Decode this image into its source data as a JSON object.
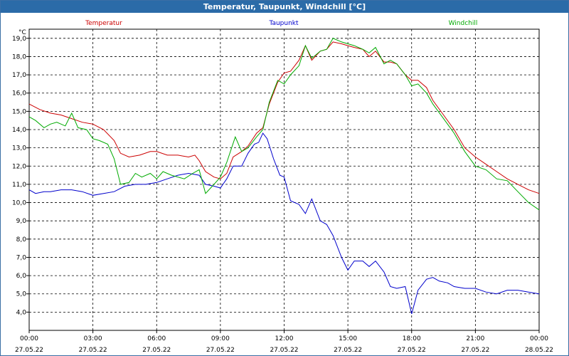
{
  "chart_data": {
    "type": "line",
    "title": "Temperatur, Taupunkt, Windchill [°C]",
    "unit_label": "°C",
    "ylim": [
      3.0,
      19.5
    ],
    "y_ticks": [
      "4,0",
      "5,0",
      "6,0",
      "7,0",
      "8,0",
      "9,0",
      "10,0",
      "11,0",
      "12,0",
      "13,0",
      "14,0",
      "15,0",
      "16,0",
      "17,0",
      "18,0",
      "19,0"
    ],
    "y_tick_values": [
      4,
      5,
      6,
      7,
      8,
      9,
      10,
      11,
      12,
      13,
      14,
      15,
      16,
      17,
      18,
      19
    ],
    "xlim": [
      0,
      24
    ],
    "x_tick_hours": [
      0,
      3,
      6,
      9,
      12,
      15,
      18,
      21,
      24
    ],
    "x_tick_times": [
      "00:00",
      "03:00",
      "06:00",
      "09:00",
      "12:00",
      "15:00",
      "18:00",
      "21:00",
      "00:00"
    ],
    "x_tick_dates": [
      "27.05.22",
      "27.05.22",
      "27.05.22",
      "27.05.22",
      "27.05.22",
      "27.05.22",
      "27.05.22",
      "27.05.22",
      "28.05.22"
    ],
    "grid": true,
    "series": [
      {
        "name": "Temperatur",
        "color": "#cc0000",
        "x": [
          0,
          0.5,
          1,
          1.5,
          2,
          2.5,
          3,
          3.5,
          4,
          4.3,
          4.7,
          5.2,
          5.7,
          6,
          6.5,
          7,
          7.5,
          7.8,
          8,
          8.3,
          8.7,
          9,
          9.3,
          9.6,
          10,
          10.3,
          10.7,
          11,
          11.3,
          11.7,
          12,
          12.3,
          12.7,
          13,
          13.3,
          13.7,
          14,
          14.3,
          14.7,
          15,
          15.3,
          15.7,
          16,
          16.3,
          16.7,
          17,
          17.3,
          17.7,
          18,
          18.3,
          18.7,
          19,
          19.5,
          20,
          20.5,
          21,
          21.5,
          22,
          22.5,
          23,
          23.5,
          24
        ],
        "values": [
          15.4,
          15.1,
          14.9,
          14.8,
          14.6,
          14.4,
          14.3,
          14.0,
          13.4,
          12.7,
          12.5,
          12.6,
          12.8,
          12.8,
          12.6,
          12.6,
          12.5,
          12.6,
          12.3,
          11.7,
          11.4,
          11.3,
          11.6,
          12.5,
          12.8,
          13.1,
          13.8,
          14.1,
          15.4,
          16.6,
          17.1,
          17.2,
          17.8,
          18.6,
          17.8,
          18.3,
          18.4,
          18.8,
          18.7,
          18.6,
          18.5,
          18.4,
          18.0,
          18.3,
          17.7,
          17.7,
          17.6,
          17.0,
          16.7,
          16.7,
          16.3,
          15.6,
          14.8,
          14.0,
          13.0,
          12.5,
          12.1,
          11.7,
          11.3,
          11.0,
          10.7,
          10.5
        ]
      },
      {
        "name": "Taupunkt",
        "color": "#0000cc",
        "x": [
          0,
          0.3,
          0.7,
          1,
          1.5,
          2,
          2.5,
          3,
          3.5,
          4,
          4.5,
          5,
          5.5,
          6,
          6.5,
          7,
          7.5,
          8,
          8.3,
          8.7,
          9,
          9.3,
          9.6,
          10,
          10.3,
          10.6,
          10.8,
          11,
          11.2,
          11.5,
          11.8,
          12,
          12.3,
          12.7,
          13,
          13.3,
          13.7,
          14,
          14.3,
          14.7,
          15,
          15.3,
          15.7,
          16,
          16.3,
          16.7,
          17,
          17.3,
          17.7,
          18,
          18.3,
          18.7,
          19,
          19.3,
          19.7,
          20,
          20.5,
          21,
          21.5,
          22,
          22.5,
          23,
          23.5,
          24
        ],
        "values": [
          10.7,
          10.5,
          10.6,
          10.6,
          10.7,
          10.7,
          10.6,
          10.4,
          10.5,
          10.6,
          10.9,
          11.0,
          11.0,
          11.1,
          11.3,
          11.5,
          11.6,
          11.5,
          11.0,
          10.9,
          10.8,
          11.3,
          12.0,
          12.0,
          12.7,
          13.2,
          13.3,
          13.8,
          13.5,
          12.4,
          11.5,
          11.4,
          10.1,
          9.9,
          9.4,
          10.2,
          9.0,
          8.8,
          8.2,
          7.0,
          6.3,
          6.8,
          6.8,
          6.5,
          6.8,
          6.2,
          5.4,
          5.3,
          5.4,
          3.9,
          5.2,
          5.8,
          5.9,
          5.7,
          5.6,
          5.4,
          5.3,
          5.3,
          5.1,
          5.0,
          5.2,
          5.2,
          5.1,
          5.0
        ]
      },
      {
        "name": "Windchill",
        "color": "#00aa00",
        "x": [
          0,
          0.3,
          0.7,
          1,
          1.3,
          1.7,
          2,
          2.3,
          2.7,
          3,
          3.3,
          3.7,
          4,
          4.3,
          4.7,
          5,
          5.3,
          5.7,
          6,
          6.3,
          6.7,
          7,
          7.3,
          7.7,
          8,
          8.3,
          8.7,
          9,
          9.3,
          9.7,
          10,
          10.3,
          10.7,
          11,
          11.3,
          11.7,
          12,
          12.3,
          12.7,
          13,
          13.3,
          13.7,
          14,
          14.3,
          14.7,
          15,
          15.3,
          15.7,
          16,
          16.3,
          16.7,
          17,
          17.3,
          17.7,
          18,
          18.3,
          18.7,
          19,
          19.5,
          20,
          20.5,
          21,
          21.5,
          22,
          22.5,
          23,
          23.5,
          24
        ],
        "values": [
          14.7,
          14.5,
          14.1,
          14.3,
          14.4,
          14.2,
          14.9,
          14.1,
          14.0,
          13.5,
          13.4,
          13.2,
          12.4,
          11.0,
          11.1,
          11.6,
          11.4,
          11.6,
          11.3,
          11.7,
          11.5,
          11.4,
          11.3,
          11.6,
          11.8,
          10.5,
          11.0,
          11.4,
          12.2,
          13.6,
          12.8,
          13.0,
          13.6,
          14.0,
          15.5,
          16.7,
          16.5,
          17.0,
          17.5,
          18.6,
          17.9,
          18.3,
          18.4,
          19.0,
          18.8,
          18.7,
          18.6,
          18.4,
          18.2,
          18.5,
          17.6,
          17.8,
          17.6,
          17.0,
          16.4,
          16.5,
          16.0,
          15.4,
          14.6,
          13.8,
          12.8,
          12.0,
          11.8,
          11.3,
          11.2,
          10.6,
          10.0,
          9.6
        ]
      }
    ]
  }
}
